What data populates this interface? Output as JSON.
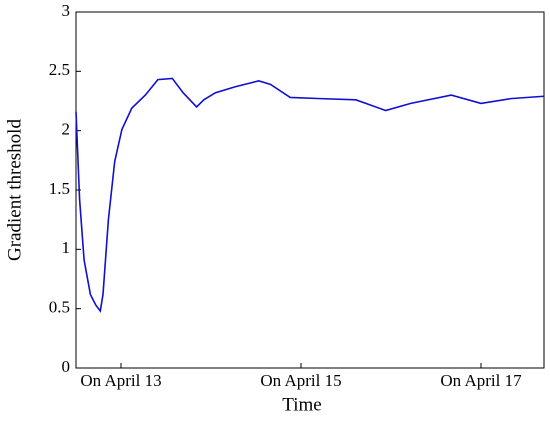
{
  "chart_data": {
    "type": "line",
    "xlabel": "Time",
    "ylabel": "Gradient threshold",
    "x": [
      12.5,
      12.54,
      12.59,
      12.66,
      12.72,
      12.77,
      12.8,
      12.86,
      12.93,
      13.01,
      13.12,
      13.27,
      13.41,
      13.57,
      13.69,
      13.84,
      13.92,
      14.05,
      14.27,
      14.53,
      14.66,
      14.88,
      15.22,
      15.61,
      15.94,
      16.22,
      16.67,
      17,
      17.33,
      17.7
    ],
    "values": [
      2.16,
      1.42,
      0.91,
      0.62,
      0.53,
      0.48,
      0.62,
      1.25,
      1.74,
      2.01,
      2.19,
      2.3,
      2.43,
      2.44,
      2.32,
      2.2,
      2.26,
      2.32,
      2.37,
      2.42,
      2.39,
      2.28,
      2.27,
      2.26,
      2.17,
      2.23,
      2.3,
      2.23,
      2.27,
      2.29
    ],
    "color": "#1010d0",
    "xlim": [
      12.5,
      17.7
    ],
    "xticks": [
      {
        "value": 13,
        "label": "On April 13"
      },
      {
        "value": 15,
        "label": "On April 15"
      },
      {
        "value": 17,
        "label": "On April 17"
      }
    ],
    "ylim": [
      0,
      3
    ],
    "yticks": [
      0,
      0.5,
      1,
      1.5,
      2,
      2.5,
      3
    ]
  }
}
